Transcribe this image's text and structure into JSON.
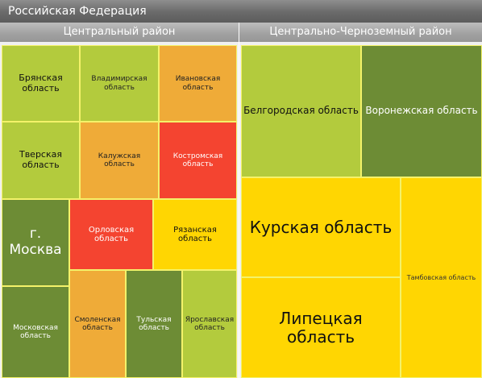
{
  "header": {
    "title": "Российская Федерация"
  },
  "colors": {
    "dark_green": "#6d8c35",
    "light_green": "#b3cb3d",
    "orange": "#efab38",
    "red": "#f44430",
    "yellow": "#ffd602"
  },
  "chart_data": {
    "type": "treemap",
    "title": "Российская Федерация",
    "groups": [
      {
        "name": "Центральный район",
        "items": [
          {
            "name": "Брянская область",
            "color": "#b3cb3d"
          },
          {
            "name": "Владимирская область",
            "color": "#b3cb3d"
          },
          {
            "name": "Ивановская область",
            "color": "#efab38"
          },
          {
            "name": "Тверская область",
            "color": "#b3cb3d"
          },
          {
            "name": "Калужская область",
            "color": "#efab38"
          },
          {
            "name": "Костромская область",
            "color": "#f44430"
          },
          {
            "name": "г. Москва",
            "color": "#6d8c35"
          },
          {
            "name": "Орловская область",
            "color": "#f44430"
          },
          {
            "name": "Рязанская область",
            "color": "#ffd602"
          },
          {
            "name": "Московская область",
            "color": "#6d8c35"
          },
          {
            "name": "Смоленская область",
            "color": "#efab38"
          },
          {
            "name": "Тульская область",
            "color": "#6d8c35"
          },
          {
            "name": "Ярославская область",
            "color": "#b3cb3d"
          }
        ]
      },
      {
        "name": "Центрально-Черноземный район",
        "items": [
          {
            "name": "Белгородская область",
            "color": "#b3cb3d"
          },
          {
            "name": "Воронежская область",
            "color": "#6d8c35"
          },
          {
            "name": "Курская область",
            "color": "#ffd602"
          },
          {
            "name": "Липецкая область",
            "color": "#ffd602"
          },
          {
            "name": "Тамбовская область",
            "color": "#ffd602"
          }
        ]
      }
    ]
  }
}
